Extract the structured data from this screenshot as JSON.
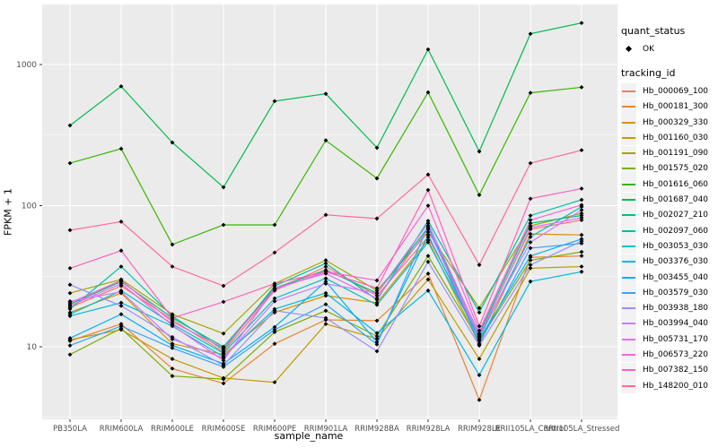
{
  "figure": {
    "background": "#FFFFFF",
    "panel_fill": "#EBEBEB",
    "grid_color": "#FFFFFF",
    "tick_mark_color": "#333333",
    "tick_label_color": "#4D4D4D",
    "axis_title_color": "#000000",
    "point_color": "#000000",
    "legend_key_fill": "#F2F2F2"
  },
  "axes": {
    "x_title": "sample_name",
    "y_title": "FPKM + 1"
  },
  "legend": {
    "quant_status_title": "quant_status",
    "quant_status_ok_label": "OK",
    "tracking_id_title": "tracking_id"
  },
  "chart_data": {
    "type": "line",
    "title": "",
    "xlabel": "sample_name",
    "ylabel": "FPKM + 1",
    "y_scale": "log10",
    "y_tick_values": [
      10,
      100,
      1000
    ],
    "y_tick_labels": [
      "10",
      "100",
      "1000"
    ],
    "ylim_log10": [
      0.49,
      3.42
    ],
    "grid": true,
    "legend_position": "right",
    "marker": "black-diamond",
    "categories": [
      "PB350LA",
      "RRIM600LA",
      "RRIM600LE",
      "RRIM600SE",
      "RRIM600PE",
      "RRIM901LA",
      "RRIM928BA",
      "RRIM928LA",
      "RRIM928LE",
      "RRII105LA_Control",
      "RRII105LA_Stressed"
    ],
    "series": [
      {
        "name": "Hb_000069_100",
        "color": "#F8766D",
        "values": [
          19,
          27,
          15.5,
          9.2,
          25,
          37,
          23,
          60,
          12,
          68,
          79
        ]
      },
      {
        "name": "Hb_000181_300",
        "color": "#EA8331",
        "values": [
          11,
          14.5,
          7.0,
          5.5,
          10.5,
          15.5,
          15.3,
          33,
          4.2,
          43,
          44
        ]
      },
      {
        "name": "Hb_000329_330",
        "color": "#D89000",
        "values": [
          17.5,
          24,
          10.5,
          8.8,
          17.5,
          23,
          20.5,
          57,
          10.4,
          63,
          62
        ]
      },
      {
        "name": "Hb_001160_030",
        "color": "#C09B00",
        "values": [
          11.2,
          13.2,
          8.2,
          6.0,
          5.6,
          14.5,
          11.4,
          30,
          8.2,
          36,
          37
        ]
      },
      {
        "name": "Hb_001191_090",
        "color": "#A3A500",
        "values": [
          24,
          30,
          17,
          12.4,
          28,
          41,
          25,
          65,
          18.8,
          72,
          88
        ]
      },
      {
        "name": "Hb_001575_020",
        "color": "#7CAE00",
        "values": [
          8.8,
          13.5,
          6.2,
          5.9,
          12.7,
          18,
          11.9,
          44,
          11,
          41,
          47
        ]
      },
      {
        "name": "Hb_001616_060",
        "color": "#39B600",
        "values": [
          200,
          253,
          53,
          73,
          73,
          290,
          156,
          635,
          119,
          630,
          690
        ]
      },
      {
        "name": "Hb_001687_040",
        "color": "#00BB4E",
        "values": [
          370,
          700,
          280,
          135,
          550,
          620,
          257,
          1280,
          242,
          1650,
          1970
        ]
      },
      {
        "name": "Hb_002027_210",
        "color": "#00BF7D",
        "values": [
          20,
          29,
          16,
          10,
          26,
          35,
          24,
          70,
          12.4,
          75,
          85
        ]
      },
      {
        "name": "Hb_002097_060",
        "color": "#00C1A3",
        "values": [
          18.5,
          37,
          16.5,
          9.5,
          27,
          39,
          21.5,
          78,
          17.5,
          85,
          110
        ]
      },
      {
        "name": "Hb_003053_030",
        "color": "#00BFC4",
        "values": [
          17,
          25,
          14.5,
          9.0,
          22,
          30.5,
          19.8,
          55,
          11.6,
          60,
          98
        ]
      },
      {
        "name": "Hb_003376_030",
        "color": "#00BAE0",
        "values": [
          16.5,
          20.5,
          14,
          8.5,
          18.5,
          24,
          12.5,
          25,
          6.3,
          29,
          34
        ]
      },
      {
        "name": "Hb_003455_040",
        "color": "#00B0F6",
        "values": [
          11.5,
          17,
          10.2,
          7.6,
          13.8,
          29,
          10.8,
          62,
          11.3,
          44,
          58
        ]
      },
      {
        "name": "Hb_003579_030",
        "color": "#35A2FF",
        "values": [
          10.2,
          14,
          9.8,
          7.2,
          13.2,
          20,
          10.4,
          72,
          10.5,
          50,
          54
        ]
      },
      {
        "name": "Hb_003938_180",
        "color": "#9590FF",
        "values": [
          27.5,
          19.5,
          11.7,
          7.4,
          18,
          16,
          9.3,
          40,
          10.2,
          38,
          56
        ]
      },
      {
        "name": "Hb_003994_040",
        "color": "#C77CFF",
        "values": [
          21,
          24.5,
          11.3,
          8.3,
          21,
          28,
          24,
          75,
          12.2,
          55,
          93
        ]
      },
      {
        "name": "Hb_005731_170",
        "color": "#E76BF3",
        "values": [
          19.5,
          28,
          14.2,
          8.0,
          26,
          33,
          22,
          68,
          11.8,
          70,
          82
        ]
      },
      {
        "name": "Hb_006573_220",
        "color": "#FA62DB",
        "values": [
          20.5,
          29.5,
          15,
          9.8,
          25.5,
          34,
          29.5,
          100,
          13,
          79,
          101
        ]
      },
      {
        "name": "Hb_007382_150",
        "color": "#FF62BC",
        "values": [
          36,
          48,
          16,
          20.8,
          28,
          34,
          26,
          129,
          14,
          112,
          132
        ]
      },
      {
        "name": "Hb_148200_010",
        "color": "#FF6A98",
        "values": [
          67,
          77,
          37,
          27,
          46.5,
          86,
          81,
          166,
          38,
          200,
          247
        ]
      }
    ]
  }
}
